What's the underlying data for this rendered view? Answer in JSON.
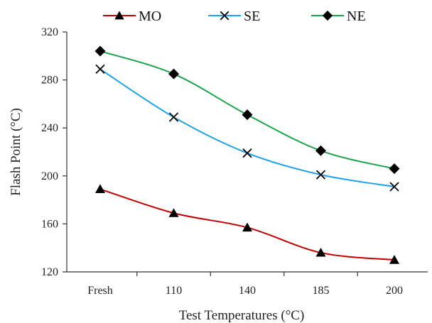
{
  "chart_data": {
    "type": "line",
    "title": "",
    "xlabel": "Test Temperatures (°C)",
    "ylabel": "Flash Point (°C)",
    "categories": [
      "Fresh",
      "110",
      "140",
      "185",
      "200"
    ],
    "ylim": [
      120,
      320
    ],
    "yticks": [
      "120",
      "160",
      "200",
      "240",
      "280",
      "320"
    ],
    "grid": false,
    "legend_position": "top",
    "smooth": true,
    "series": [
      {
        "name": "MO",
        "marker": "triangle",
        "color": "#c00000",
        "values": [
          189,
          169,
          157,
          136,
          130
        ]
      },
      {
        "name": "SE",
        "marker": "x",
        "color": "#1fa2e8",
        "values": [
          289,
          249,
          219,
          201,
          191
        ]
      },
      {
        "name": "NE",
        "marker": "diamond",
        "color": "#1aa34a",
        "values": [
          304,
          285,
          251,
          221,
          206
        ]
      }
    ]
  }
}
